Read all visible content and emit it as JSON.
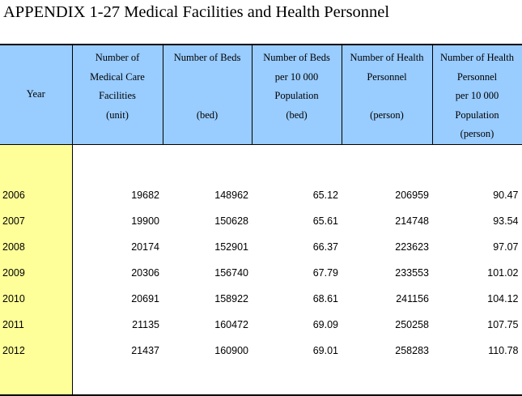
{
  "title": "APPENDIX 1-27  Medical Facilities and Health Personnel",
  "headers": [
    "Year",
    "Number of\nMedical Care\nFacilities\n(unit)",
    "Number of Beds\n\n\n(bed)",
    "Number of Beds\nper 10 000\nPopulation\n(bed)",
    "Number of Health\nPersonnel\n\n(person)",
    "Number of Health\nPersonnel\nper 10 000\nPopulation\n(person)"
  ],
  "rows": [
    [
      "2006",
      "19682",
      "148962",
      "65.12",
      "206959",
      "90.47"
    ],
    [
      "2007",
      "19900",
      "150628",
      "65.61",
      "214748",
      "93.54"
    ],
    [
      "2008",
      "20174",
      "152901",
      "66.37",
      "223623",
      "97.07"
    ],
    [
      "2009",
      "20306",
      "156740",
      "67.79",
      "233553",
      "101.02"
    ],
    [
      "2010",
      "20691",
      "158922",
      "68.61",
      "241156",
      "104.12"
    ],
    [
      "2011",
      "21135",
      "160472",
      "69.09",
      "250258",
      "107.75"
    ],
    [
      "2012",
      "21437",
      "160900",
      "69.01",
      "258283",
      "110.78"
    ]
  ]
}
